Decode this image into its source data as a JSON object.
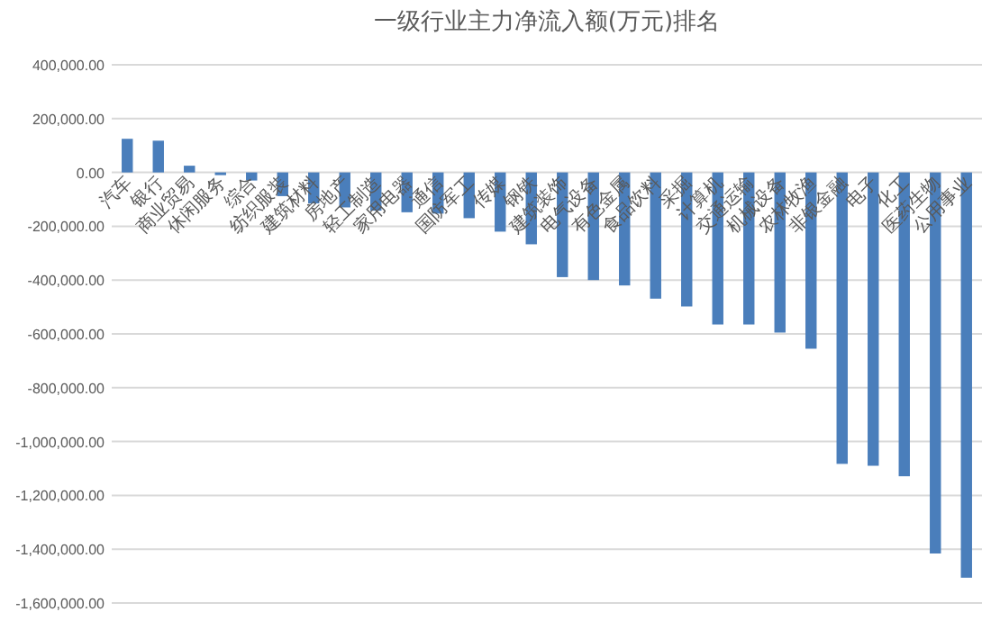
{
  "chart_data": {
    "type": "bar",
    "title": "一级行业主力净流入额(万元)排名",
    "categories": [
      "汽车",
      "银行",
      "商业贸易",
      "休闲服务",
      "综合",
      "纺织服装",
      "建筑材料",
      "房地产",
      "轻工制造",
      "家用电器",
      "通信",
      "国防军工",
      "传媒",
      "钢铁",
      "建筑装饰",
      "电气设备",
      "有色金属",
      "食品饮料",
      "采掘",
      "计算机",
      "交通运输",
      "机械设备",
      "农林牧渔",
      "非银金融",
      "电子",
      "化工",
      "医药生物",
      "公用事业"
    ],
    "values": [
      125000,
      118000,
      25000,
      -10000,
      -30000,
      -88000,
      -115000,
      -130000,
      -142000,
      -148000,
      -153000,
      -170000,
      -220000,
      -267000,
      -389000,
      -400000,
      -420000,
      -469000,
      -498000,
      -565000,
      -565000,
      -595000,
      -655000,
      -1083000,
      -1090000,
      -1129000,
      -1416000,
      -1506000
    ],
    "color": "#4a7ebb",
    "ylim": [
      -1600000,
      400000
    ],
    "yticks": [
      {
        "value": 400000,
        "label": "400,000.00"
      },
      {
        "value": 200000,
        "label": "200,000.00"
      },
      {
        "value": 0,
        "label": "0.00"
      },
      {
        "value": -200000,
        "label": "-200,000.00"
      },
      {
        "value": -400000,
        "label": "-400,000.00"
      },
      {
        "value": -600000,
        "label": "-600,000.00"
      },
      {
        "value": -800000,
        "label": "-800,000.00"
      },
      {
        "value": -1000000,
        "label": "-1,000,000.00"
      },
      {
        "value": -1200000,
        "label": "-1,200,000.00"
      },
      {
        "value": -1400000,
        "label": "-1,400,000.00"
      },
      {
        "value": -1600000,
        "label": "-1,600,000.00"
      }
    ],
    "grid": "y"
  }
}
